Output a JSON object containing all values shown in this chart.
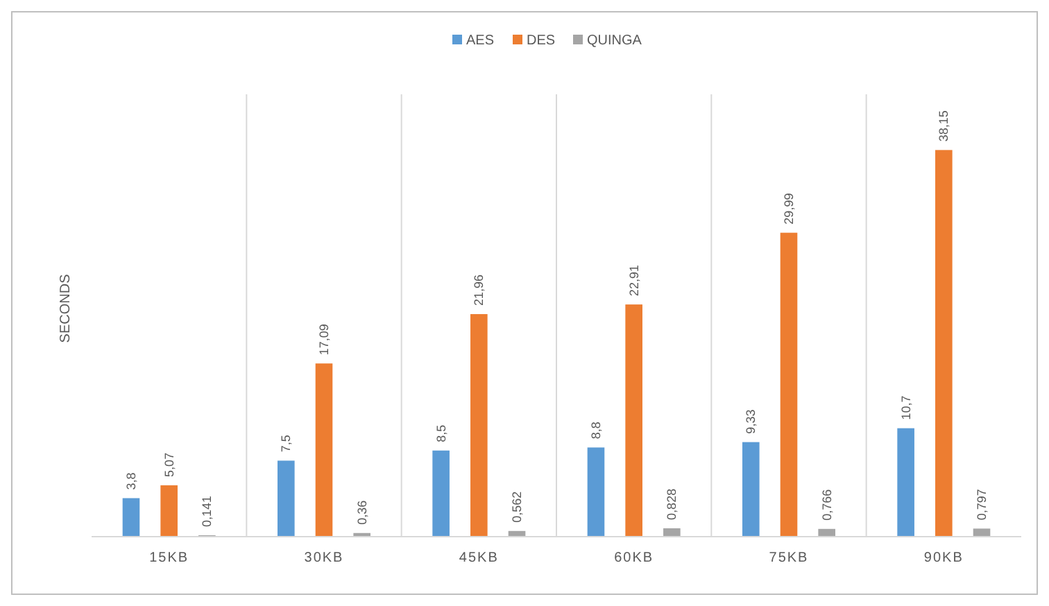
{
  "chart_data": {
    "type": "bar",
    "ylabel": "SECONDS",
    "categories": [
      "15KB",
      "30KB",
      "45KB",
      "60KB",
      "75KB",
      "90KB"
    ],
    "series": [
      {
        "name": "AES",
        "color": "#5b9bd5",
        "values": [
          3.8,
          7.5,
          8.5,
          8.8,
          9.33,
          10.7
        ],
        "value_labels": [
          "3,8",
          "7,5",
          "8,5",
          "8,8",
          "9,33",
          "10,7"
        ]
      },
      {
        "name": "DES",
        "color": "#ed7d31",
        "values": [
          5.07,
          17.09,
          21.96,
          22.91,
          29.99,
          38.15
        ],
        "value_labels": [
          "5,07",
          "17,09",
          "21,96",
          "22,91",
          "29,99",
          "38,15"
        ]
      },
      {
        "name": "QUINGA",
        "color": "#a5a5a5",
        "values": [
          0.141,
          0.36,
          0.562,
          0.828,
          0.766,
          0.797
        ],
        "value_labels": [
          "0,141",
          "0,36",
          "0,562",
          "0,828",
          "0,766",
          "0,797"
        ]
      }
    ],
    "legend": "top"
  }
}
